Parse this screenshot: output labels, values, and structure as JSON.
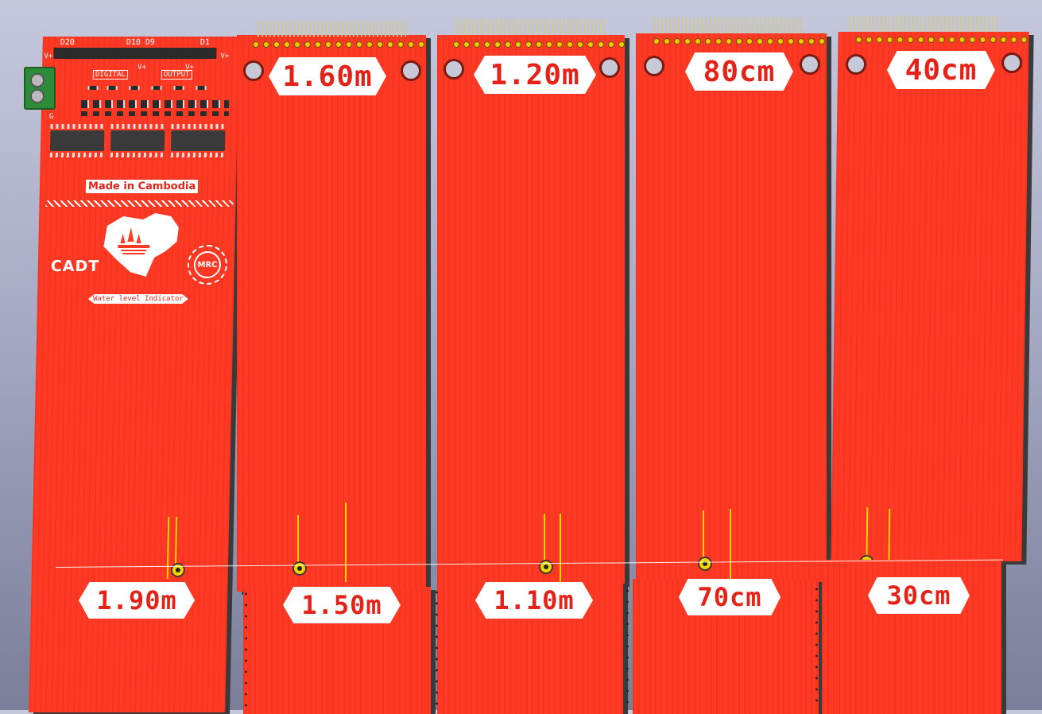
{
  "main_board": {
    "silkscreen_top": [
      "D20",
      "D10 D9",
      "D1"
    ],
    "vplus_labels": [
      "V+",
      "V+",
      "V+",
      "V+"
    ],
    "digital_label": "DIGITAL",
    "output_label": "OUTPUT",
    "g_label": "G",
    "made_in": "Made in Cambodia",
    "logo_text": "CADT",
    "mrc_text": "MRC",
    "product_label": "Water level Indicator",
    "bottom_level": "1.90m"
  },
  "strips": [
    {
      "top_level": "1.60m",
      "bottom_level": "1.50m"
    },
    {
      "top_level": "1.20m",
      "bottom_level": "1.10m"
    },
    {
      "top_level": "80cm",
      "bottom_level": "70cm"
    },
    {
      "top_level": "40cm",
      "bottom_level": "30cm"
    }
  ],
  "icons": {
    "terminal_block": "green-screw-terminal-icon",
    "map": "cambodia-map-icon",
    "seal": "mrc-seal-icon",
    "sensor": "sensor-pad-icon"
  },
  "colors": {
    "pcb": "#ff3a24",
    "silk": "#ffffff",
    "gold": "#f5d400",
    "terminal": "#2e8b3a"
  }
}
